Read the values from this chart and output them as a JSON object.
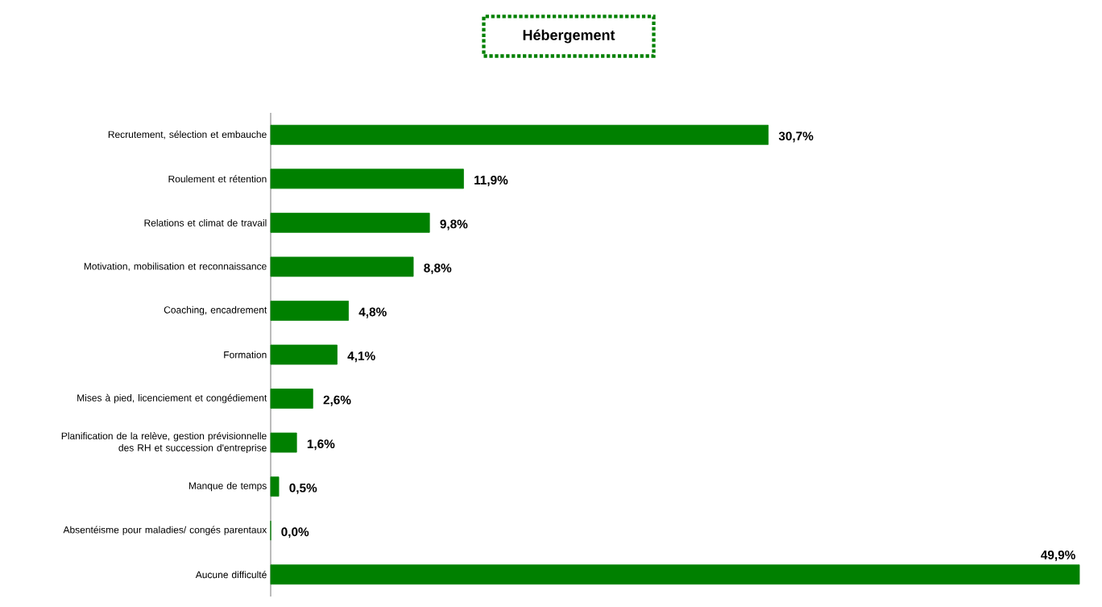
{
  "chart_data": {
    "type": "bar",
    "orientation": "horizontal",
    "title": "Hébergement",
    "categories": [
      "Recrutement, sélection et embauche",
      "Roulement et rétention",
      "Relations et climat de travail",
      "Motivation, mobilisation et reconnaissance",
      "Coaching, encadrement",
      "Formation",
      "Mises à pied, licenciement et congédiement",
      "Planification de la relève, gestion prévisionnelle des RH et succession d'entreprise",
      "Manque de temps",
      "Absentéisme pour maladies/ congés parentaux",
      "Aucune difficulté"
    ],
    "values": [
      30.7,
      11.9,
      9.8,
      8.8,
      4.8,
      4.1,
      2.6,
      1.6,
      0.5,
      0.0,
      49.9
    ],
    "value_labels": [
      "30,7%",
      "11,9%",
      "9,8%",
      "8,8%",
      "4,8%",
      "4,1%",
      "2,6%",
      "1,6%",
      "0,5%",
      "0,0%",
      "49,9%"
    ],
    "color": "#008000"
  }
}
